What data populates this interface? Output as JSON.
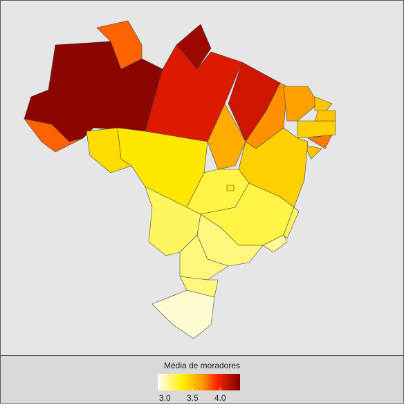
{
  "chart_data": {
    "type": "choropleth",
    "legend_title": "Média de moradores",
    "values": [
      4.3,
      3.8,
      4.25,
      4.05,
      4.1,
      3.8,
      3.4,
      3.35,
      3.6,
      3.7,
      3.65,
      3.5,
      3.45,
      3.5,
      3.75,
      3.5,
      3.45,
      3.2,
      3.3,
      3.2,
      3.15,
      3.05,
      3.1,
      3.15,
      3.1,
      3.1,
      2.95
    ],
    "lim": [
      2.87,
      4.36
    ],
    "ticks": [
      {
        "value": 3,
        "label": "3.0"
      },
      {
        "value": 3.5,
        "label": "3.5"
      },
      {
        "value": 4,
        "label": "4.0"
      }
    ]
  }
}
